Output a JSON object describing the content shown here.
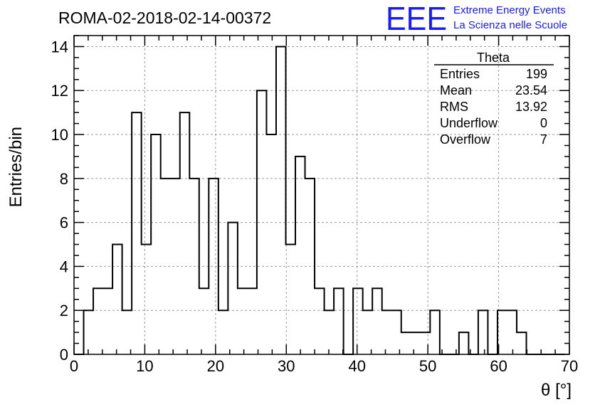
{
  "run_title": "ROMA-02-2018-02-14-00372",
  "logo": {
    "mark": "EEE",
    "line1": "Extreme Energy Events",
    "line2": "La Scienza nelle Scuole",
    "color": "#1a1aff"
  },
  "stats": {
    "title": "Theta",
    "rows": [
      {
        "label": "Entries",
        "value": "199"
      },
      {
        "label": "Mean",
        "value": "23.54"
      },
      {
        "label": "RMS",
        "value": "13.92"
      },
      {
        "label": "Underflow",
        "value": "0"
      },
      {
        "label": "Overflow",
        "value": "7"
      }
    ]
  },
  "chart_data": {
    "type": "bar",
    "histogram": "step",
    "title": "ROMA-02-2018-02-14-00372",
    "xlabel": "θ [°]",
    "ylabel": "Entries/bin",
    "xlim": [
      0,
      70
    ],
    "ylim": [
      0,
      14.5
    ],
    "bin_width": 1.36,
    "x_ticks": [
      0,
      10,
      20,
      30,
      40,
      50,
      60,
      70
    ],
    "y_ticks": [
      0,
      2,
      4,
      6,
      8,
      10,
      12,
      14
    ],
    "grid": true,
    "line_color": "#000000",
    "values": [
      0,
      2,
      3,
      3,
      5,
      2,
      11,
      5,
      10,
      8,
      8,
      11,
      8,
      3,
      8,
      2,
      6,
      3,
      3,
      12,
      10,
      14,
      5,
      9,
      8,
      3,
      2,
      3,
      0,
      3,
      2,
      3,
      2,
      2,
      1,
      1,
      1,
      2,
      0,
      0,
      1,
      0,
      2,
      0,
      2,
      2,
      1,
      0,
      0,
      0,
      0
    ]
  }
}
